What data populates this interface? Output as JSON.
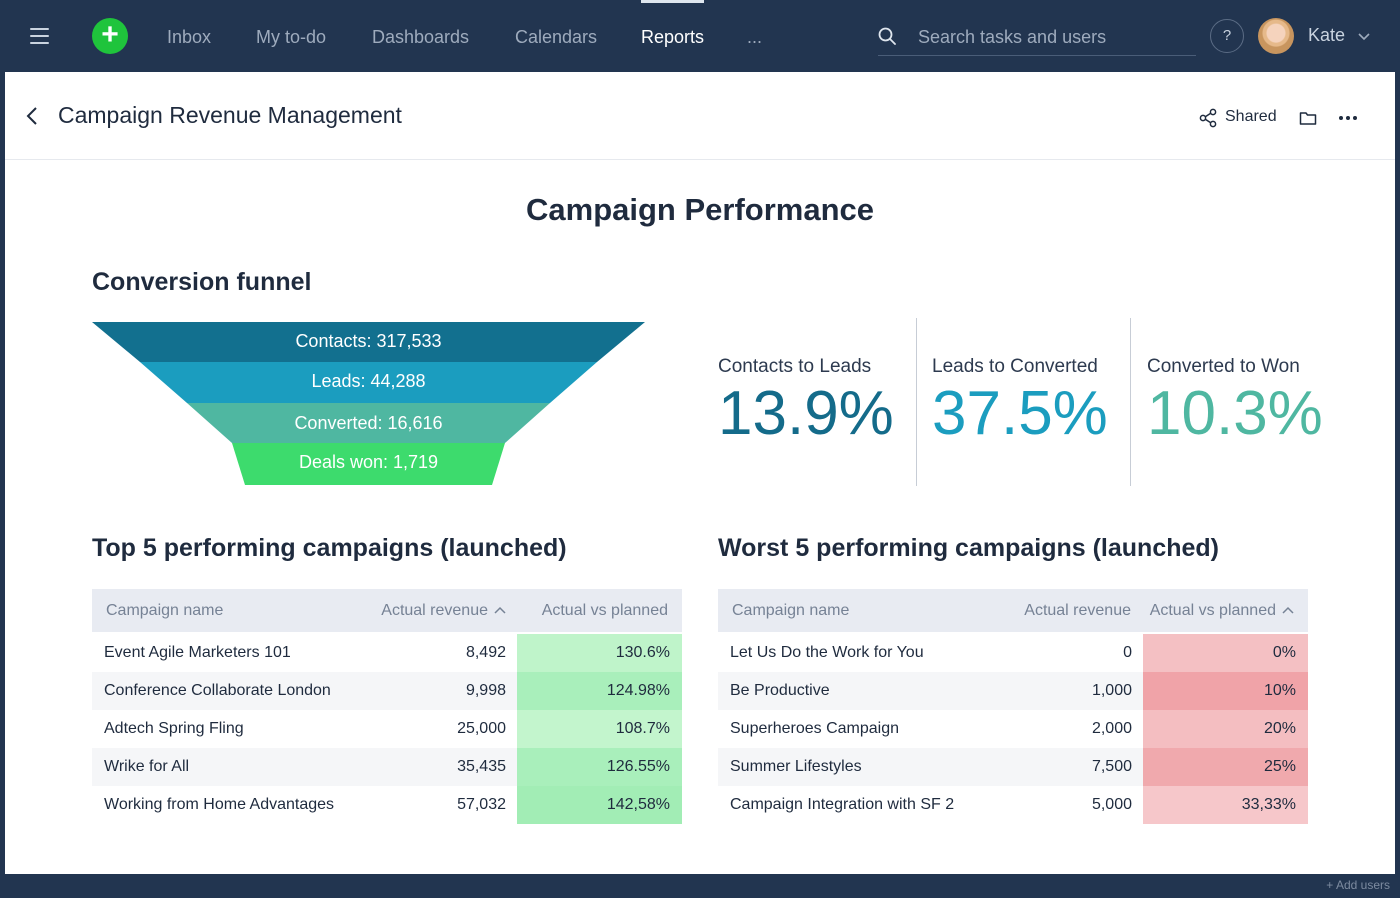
{
  "nav": {
    "items": [
      "Inbox",
      "My to-do",
      "Dashboards",
      "Calendars",
      "Reports",
      "..."
    ],
    "active_index": 4
  },
  "search": {
    "placeholder": "Search tasks and users"
  },
  "help_label": "?",
  "user": {
    "name": "Kate"
  },
  "header": {
    "title": "Campaign Revenue Management",
    "shared_label": "Shared"
  },
  "report": {
    "title": "Campaign Performance",
    "funnel_title": "Conversion funnel",
    "funnel": [
      {
        "label": "Contacts: 317,533",
        "color": "#12708f"
      },
      {
        "label": "Leads: 44,288",
        "color": "#1b9dbf"
      },
      {
        "label": "Converted: 16,616",
        "color": "#4fb7a1"
      },
      {
        "label": "Deals won: 1,719",
        "color": "#3ddb6d"
      }
    ],
    "metrics": [
      {
        "label": "Contacts to Leads",
        "value": "13.9%",
        "color": "#146b8a"
      },
      {
        "label": "Leads to Converted",
        "value": "37.5%",
        "color": "#1b9dbf"
      },
      {
        "label": "Converted to Won",
        "value": "10.3%",
        "color": "#4fb7a1"
      }
    ],
    "top_title": "Top 5 performing campaigns (launched)",
    "worst_title": "Worst 5 performing campaigns (launched)",
    "top_table": {
      "columns": [
        "Campaign name",
        "Actual revenue",
        "Actual vs planned"
      ],
      "sorted_column": 1,
      "rows": [
        {
          "name": "Event Agile Marketers 101",
          "revenue": "8,492",
          "pct": "130.6%",
          "color": "#bff4ca"
        },
        {
          "name": "Conference Collaborate London",
          "revenue": "9,998",
          "pct": "124.98%",
          "color": "#a9efbb"
        },
        {
          "name": "Adtech Spring Fling",
          "revenue": "25,000",
          "pct": "108.7%",
          "color": "#c3f5cd"
        },
        {
          "name": "Wrike for All",
          "revenue": "35,435",
          "pct": "126.55%",
          "color": "#a9efbb"
        },
        {
          "name": "Working from Home Advantages",
          "revenue": "57,032",
          "pct": "142,58%",
          "color": "#a2edb5"
        }
      ]
    },
    "worst_table": {
      "columns": [
        "Campaign name",
        "Actual revenue",
        "Actual vs planned"
      ],
      "sorted_column": 2,
      "rows": [
        {
          "name": "Let Us Do the Work for You",
          "revenue": "0",
          "pct": "0%",
          "color": "#f4c0c3"
        },
        {
          "name": "Be Productive",
          "revenue": "1,000",
          "pct": "10%",
          "color": "#f0a3a8"
        },
        {
          "name": "Superheroes Campaign",
          "revenue": "2,000",
          "pct": "20%",
          "color": "#f4bec1"
        },
        {
          "name": "Summer Lifestyles",
          "revenue": "7,500",
          "pct": "25%",
          "color": "#f0a9ad"
        },
        {
          "name": "Campaign Integration with SF 2",
          "revenue": "5,000",
          "pct": "33,33%",
          "color": "#f6c7ca"
        }
      ]
    }
  },
  "footer": {
    "add_users": "+ Add users"
  }
}
